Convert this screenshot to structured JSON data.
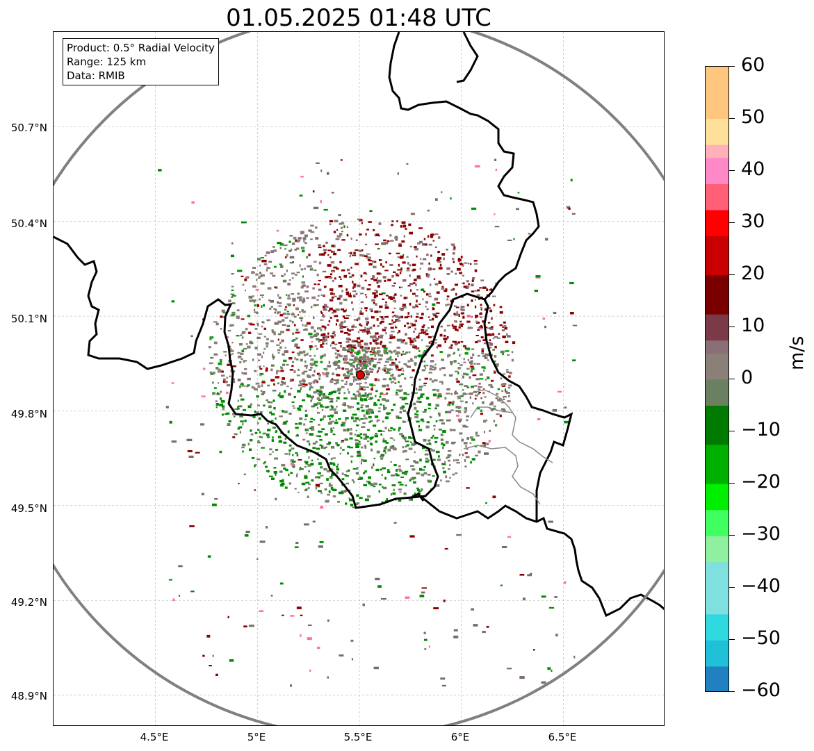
{
  "title": "01.05.2025 01:48 UTC",
  "info": {
    "product": "Product: 0.5° Radial Velocity",
    "range": "Range: 125 km",
    "data": "Data: RMIB"
  },
  "axes": {
    "lat_ticks": [
      "50.7°N",
      "50.4°N",
      "50.1°N",
      "49.8°N",
      "49.5°N",
      "49.2°N",
      "48.9°N"
    ],
    "lon_ticks": [
      "4.5°E",
      "5°E",
      "5.5°E",
      "6°E",
      "6.5°E"
    ],
    "lon_range": [
      4.0,
      7.0
    ],
    "lat_range": [
      48.8,
      51.0
    ]
  },
  "radar": {
    "lon": 5.505,
    "lat": 49.914,
    "marker_color": "#e00000"
  },
  "colorbar": {
    "label": "m/s",
    "ticks": [
      "60",
      "50",
      "40",
      "30",
      "20",
      "10",
      "0",
      "−10",
      "−20",
      "−30",
      "−40",
      "−50",
      "−60"
    ],
    "vmin": -60,
    "vmax": 60
  },
  "colors": {
    "range_ring": "#808080",
    "border": "#000000",
    "grid": "#b0b0b0"
  }
}
